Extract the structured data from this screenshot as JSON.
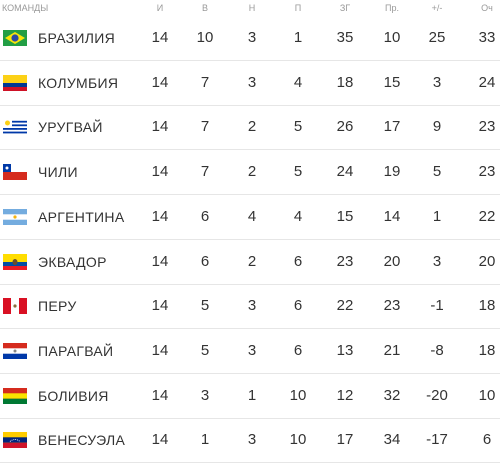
{
  "table": {
    "header": [
      "КОМАНДЫ",
      "И",
      "В",
      "Н",
      "П",
      "ЗГ",
      "Пр.",
      "+/-",
      "Оч"
    ],
    "rows": [
      [
        "БРАЗИЛИЯ",
        14,
        10,
        3,
        1,
        35,
        10,
        25,
        33
      ],
      [
        "КОЛУМБИЯ",
        14,
        7,
        3,
        4,
        18,
        15,
        3,
        24
      ],
      [
        "УРУГВАЙ",
        14,
        7,
        2,
        5,
        26,
        17,
        9,
        23
      ],
      [
        "ЧИЛИ",
        14,
        7,
        2,
        5,
        24,
        19,
        5,
        23
      ],
      [
        "АРГЕНТИНА",
        14,
        6,
        4,
        4,
        15,
        14,
        1,
        22
      ],
      [
        "ЭКВАДОР",
        14,
        6,
        2,
        6,
        23,
        20,
        3,
        20
      ],
      [
        "ПЕРУ",
        14,
        5,
        3,
        6,
        22,
        23,
        -1,
        18
      ],
      [
        "ПАРАГВАЙ",
        14,
        5,
        3,
        6,
        13,
        21,
        -8,
        18
      ],
      [
        "БОЛИВИЯ",
        14,
        3,
        1,
        10,
        12,
        32,
        -20,
        10
      ],
      [
        "ВЕНЕСУЭЛА",
        14,
        1,
        3,
        10,
        17,
        34,
        -17,
        6
      ]
    ]
  }
}
